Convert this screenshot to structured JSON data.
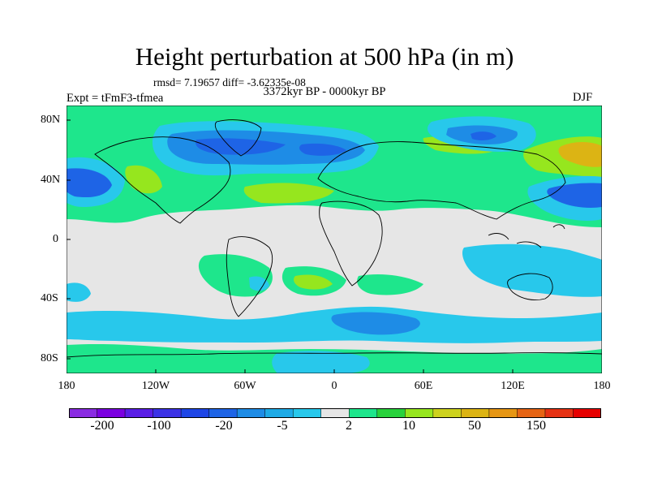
{
  "title": "Height perturbation at 500 hPa (in m)",
  "stats": "rmsd= 7.19657 diff= -3.62335e-08",
  "experiment": "Expt = tFmF3-tfmea",
  "period": "3372kyr BP - 0000kyr BP",
  "season": "DJF",
  "map": {
    "lat_labels": [
      "80N",
      "40N",
      "0",
      "40S",
      "80S"
    ],
    "lon_labels": [
      "180",
      "120W",
      "60W",
      "0",
      "60E",
      "120E",
      "180"
    ],
    "background_color": "#e6e6e6",
    "anomalies": [
      {
        "region": "North Atlantic / Greenland",
        "lon": -50,
        "lat": 62,
        "sign": "negative"
      },
      {
        "region": "North Pacific",
        "lon": -170,
        "lat": 42,
        "sign": "negative"
      },
      {
        "region": "Northwest Pacific",
        "lon": 170,
        "lat": 45,
        "sign": "negative"
      },
      {
        "region": "Siberia",
        "lon": 90,
        "lat": 68,
        "sign": "negative"
      },
      {
        "region": "Northeast Asia",
        "lon": 150,
        "lat": 65,
        "sign": "positive"
      },
      {
        "region": "Southern Ocean (Indian sector)",
        "lon": 40,
        "lat": -63,
        "sign": "negative"
      }
    ]
  },
  "colorbar": {
    "colors": [
      "#8a2be2",
      "#7b00e0",
      "#5a1ee6",
      "#3c32e6",
      "#1e46e6",
      "#1e64e6",
      "#1e8ce6",
      "#1eaae6",
      "#28c8eb",
      "#e6e6e6",
      "#1ee68c",
      "#28d23c",
      "#96e61e",
      "#cdd21e",
      "#dcb414",
      "#e69614",
      "#e66414",
      "#e63214",
      "#e60000"
    ],
    "labels": [
      "-200",
      "-100",
      "-20",
      "-5",
      "2",
      "10",
      "50",
      "150"
    ]
  }
}
